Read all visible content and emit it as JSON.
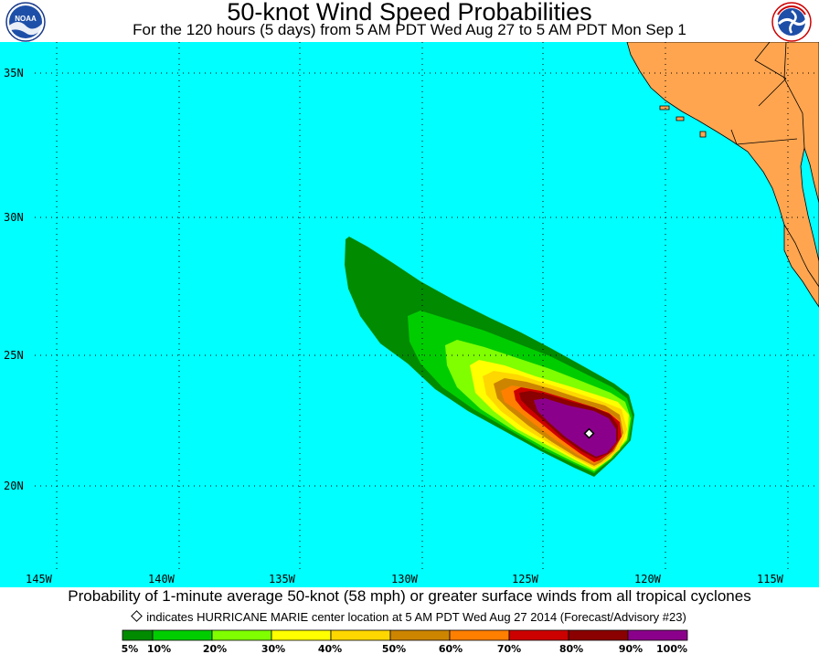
{
  "header": {
    "title": "50-knot Wind Speed Probabilities",
    "subtitle": "For the 120 hours (5 days) from 5 AM PDT Wed Aug 27 to 5 AM PDT Mon Sep 1"
  },
  "logos": {
    "left": "noaa-logo",
    "right": "national-weather-service-logo",
    "left_text": "NOAA",
    "right_text": "NATIONAL WEATHER SERVICE"
  },
  "map": {
    "ocean_color": "#00ffff",
    "land_color": "#ffa54f",
    "lat_labels": [
      "35N",
      "30N",
      "25N",
      "20N"
    ],
    "lon_labels": [
      "145W",
      "140W",
      "135W",
      "130W",
      "125W",
      "120W",
      "115W"
    ],
    "storm_center": {
      "lat": 21.9,
      "lon": -122.6
    }
  },
  "caption": "Probability of 1-minute average 50-knot (58 mph) or greater surface winds from all tropical cyclones",
  "note": "indicates HURRICANE MARIE center location at 5 AM PDT Wed Aug 27 2014 (Forecast/Advisory #23)",
  "legend": {
    "labels": [
      "5%",
      "10%",
      "20%",
      "30%",
      "40%",
      "50%",
      "60%",
      "70%",
      "80%",
      "90%",
      "100%"
    ],
    "colors": [
      "#008b00",
      "#00cd00",
      "#7fff00",
      "#ffff00",
      "#ffd700",
      "#cd8500",
      "#ff7f00",
      "#cd0000",
      "#8b0000",
      "#8b008b"
    ]
  }
}
